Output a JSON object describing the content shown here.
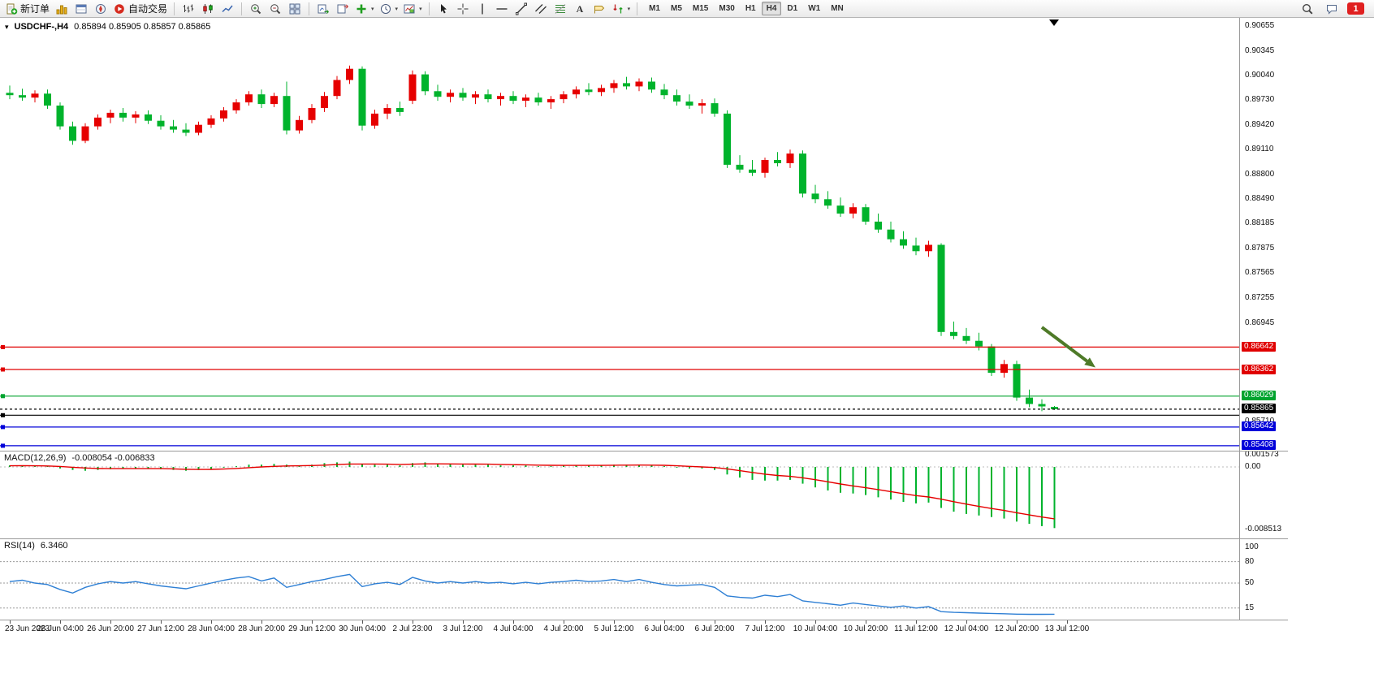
{
  "toolbar": {
    "new_order_label": "新订单",
    "auto_trading_label": "自动交易",
    "timeframes": [
      "M1",
      "M5",
      "M15",
      "M30",
      "H1",
      "H4",
      "D1",
      "W1",
      "MN"
    ],
    "active_timeframe": "H4",
    "notification_badge": "1"
  },
  "chart": {
    "title_symbol": "USDCHF-,H4",
    "title_ohlc": "0.85894 0.85905 0.85857 0.85865"
  },
  "macd_panel": {
    "label": "MACD(12,26,9)",
    "values": "-0.008054 -0.006833",
    "axis_labels": [
      "0.001573",
      "0.00",
      "-0.008513"
    ],
    "axis_values": [
      0.001573,
      0,
      -0.008513
    ]
  },
  "rsi_panel": {
    "label": "RSI(14)",
    "value": "6.3460",
    "axis_labels": [
      "100",
      "80",
      "50",
      "15"
    ],
    "axis_values": [
      100,
      80,
      50,
      15
    ],
    "level_lines": [
      80,
      50,
      15
    ]
  },
  "colors": {
    "up_color": "#E60000",
    "down_color": "#00B32C",
    "macd_color": "#00B32C",
    "signal_color": "#E60000",
    "rsi_color": "#2E7FD4",
    "arrow_color": "#4E7A28",
    "line_red": "#E00000",
    "line_green": "#00A32E",
    "line_blue": "#0000D9"
  },
  "chart_data": {
    "type": "candlestick",
    "symbol": "USDCHF",
    "timeframe": "H4",
    "ohlc_current": {
      "open": 0.85894,
      "high": 0.85905,
      "low": 0.85857,
      "close": 0.85865
    },
    "price_ticks": [
      "0.90655",
      "0.90345",
      "0.90040",
      "0.89730",
      "0.89420",
      "0.89110",
      "0.88800",
      "0.88490",
      "0.88185",
      "0.87875",
      "0.87565",
      "0.87255",
      "0.86945",
      "0.85710"
    ],
    "time_labels": [
      "23 Jun 2023",
      "26 Jun 04:00",
      "26 Jun 20:00",
      "27 Jun 12:00",
      "28 Jun 04:00",
      "28 Jun 20:00",
      "29 Jun 12:00",
      "30 Jun 04:00",
      "2 Jul 23:00",
      "3 Jul 12:00",
      "4 Jul 04:00",
      "4 Jul 20:00",
      "5 Jul 12:00",
      "6 Jul 04:00",
      "6 Jul 20:00",
      "7 Jul 12:00",
      "10 Jul 04:00",
      "10 Jul 20:00",
      "11 Jul 12:00",
      "12 Jul 04:00",
      "12 Jul 20:00",
      "13 Jul 12:00"
    ],
    "levels": [
      {
        "name": "resistance-line-red-1",
        "price": 0.86642,
        "label": "0.86642",
        "color": "#E00000",
        "style": "solid",
        "box": true,
        "handle": true
      },
      {
        "name": "resistance-line-red-2",
        "price": 0.86362,
        "label": "0.86362",
        "color": "#E00000",
        "style": "solid",
        "box": true,
        "handle": true
      },
      {
        "name": "support-line-green",
        "price": 0.86029,
        "label": "0.86029",
        "color": "#00A32E",
        "style": "solid",
        "box": true,
        "handle": true
      },
      {
        "name": "bid-price-line",
        "price": 0.85865,
        "label": "0.85865",
        "color": "#000000",
        "style": "dashed",
        "box": true,
        "handle": false
      },
      {
        "name": "horizontal-line-black",
        "price": 0.8579,
        "label": "0.85790",
        "color": "#000000",
        "style": "solid",
        "box": false,
        "handle": true
      },
      {
        "name": "support-line-blue-1",
        "price": 0.85642,
        "label": "0.85642",
        "color": "#0000D9",
        "style": "solid",
        "box": true,
        "handle": true
      },
      {
        "name": "support-line-blue-2",
        "price": 0.85408,
        "label": "0.85408",
        "color": "#0000D9",
        "style": "solid",
        "box": true,
        "handle": true
      }
    ],
    "candles": [
      [
        0.8982,
        0.8991,
        0.8974,
        0.8979
      ],
      [
        0.8979,
        0.8987,
        0.8972,
        0.8976
      ],
      [
        0.8976,
        0.8985,
        0.897,
        0.8981
      ],
      [
        0.8981,
        0.8986,
        0.8962,
        0.8966
      ],
      [
        0.8966,
        0.897,
        0.8936,
        0.894
      ],
      [
        0.894,
        0.8946,
        0.8917,
        0.8922
      ],
      [
        0.8922,
        0.8944,
        0.8919,
        0.894
      ],
      [
        0.894,
        0.8955,
        0.8936,
        0.8951
      ],
      [
        0.8951,
        0.8961,
        0.8944,
        0.8957
      ],
      [
        0.8957,
        0.8963,
        0.8946,
        0.8951
      ],
      [
        0.8951,
        0.8959,
        0.8944,
        0.8955
      ],
      [
        0.8955,
        0.896,
        0.8943,
        0.8947
      ],
      [
        0.8947,
        0.8954,
        0.8936,
        0.894
      ],
      [
        0.894,
        0.8948,
        0.8932,
        0.8936
      ],
      [
        0.8936,
        0.8944,
        0.8928,
        0.8932
      ],
      [
        0.8932,
        0.8946,
        0.8929,
        0.8942
      ],
      [
        0.8942,
        0.8954,
        0.8938,
        0.895
      ],
      [
        0.895,
        0.8964,
        0.8946,
        0.896
      ],
      [
        0.896,
        0.8974,
        0.8956,
        0.897
      ],
      [
        0.897,
        0.8984,
        0.8966,
        0.898
      ],
      [
        0.898,
        0.8986,
        0.8963,
        0.8968
      ],
      [
        0.8968,
        0.8982,
        0.8964,
        0.8978
      ],
      [
        0.8978,
        0.8996,
        0.893,
        0.8935
      ],
      [
        0.8935,
        0.8953,
        0.8931,
        0.8948
      ],
      [
        0.8948,
        0.8968,
        0.8944,
        0.8963
      ],
      [
        0.8963,
        0.8983,
        0.8958,
        0.8978
      ],
      [
        0.8978,
        0.9003,
        0.8974,
        0.8998
      ],
      [
        0.8998,
        0.9016,
        0.8993,
        0.9012
      ],
      [
        0.9012,
        0.9015,
        0.8935,
        0.8941
      ],
      [
        0.8941,
        0.8961,
        0.8937,
        0.8956
      ],
      [
        0.8956,
        0.8968,
        0.8949,
        0.8963
      ],
      [
        0.8963,
        0.8971,
        0.8953,
        0.8958
      ],
      [
        0.8972,
        0.901,
        0.8968,
        0.9005
      ],
      [
        0.9005,
        0.9009,
        0.8979,
        0.8984
      ],
      [
        0.8984,
        0.8992,
        0.8972,
        0.8977
      ],
      [
        0.8977,
        0.8986,
        0.897,
        0.8982
      ],
      [
        0.8982,
        0.8988,
        0.8972,
        0.8976
      ],
      [
        0.8976,
        0.8984,
        0.8968,
        0.898
      ],
      [
        0.898,
        0.8986,
        0.897,
        0.8974
      ],
      [
        0.8974,
        0.8982,
        0.8966,
        0.8978
      ],
      [
        0.8978,
        0.8984,
        0.8968,
        0.8972
      ],
      [
        0.8972,
        0.898,
        0.8964,
        0.8976
      ],
      [
        0.8976,
        0.8982,
        0.8966,
        0.897
      ],
      [
        0.897,
        0.8978,
        0.8962,
        0.8974
      ],
      [
        0.8974,
        0.8984,
        0.8969,
        0.898
      ],
      [
        0.898,
        0.899,
        0.8975,
        0.8986
      ],
      [
        0.8986,
        0.8994,
        0.8979,
        0.8983
      ],
      [
        0.8983,
        0.8992,
        0.8978,
        0.8988
      ],
      [
        0.8988,
        0.8998,
        0.8982,
        0.8994
      ],
      [
        0.8994,
        0.9002,
        0.8986,
        0.899
      ],
      [
        0.899,
        0.9,
        0.8984,
        0.8996
      ],
      [
        0.8996,
        0.9001,
        0.8982,
        0.8986
      ],
      [
        0.8986,
        0.8993,
        0.8974,
        0.8979
      ],
      [
        0.8979,
        0.8986,
        0.8966,
        0.8971
      ],
      [
        0.8971,
        0.898,
        0.8962,
        0.8966
      ],
      [
        0.8966,
        0.8974,
        0.8956,
        0.8969
      ],
      [
        0.8969,
        0.8975,
        0.8952,
        0.8956
      ],
      [
        0.8956,
        0.896,
        0.8888,
        0.8892
      ],
      [
        0.8892,
        0.8904,
        0.8882,
        0.8886
      ],
      [
        0.8886,
        0.8898,
        0.8878,
        0.8882
      ],
      [
        0.8882,
        0.8901,
        0.8876,
        0.8898
      ],
      [
        0.8898,
        0.8908,
        0.889,
        0.8894
      ],
      [
        0.8894,
        0.8911,
        0.8888,
        0.8906
      ],
      [
        0.8906,
        0.891,
        0.8851,
        0.8856
      ],
      [
        0.8856,
        0.8867,
        0.8844,
        0.8849
      ],
      [
        0.8849,
        0.8859,
        0.8837,
        0.8841
      ],
      [
        0.8841,
        0.8851,
        0.8827,
        0.8831
      ],
      [
        0.8831,
        0.8844,
        0.8825,
        0.8839
      ],
      [
        0.8839,
        0.8843,
        0.8817,
        0.8821
      ],
      [
        0.8821,
        0.8831,
        0.8807,
        0.8811
      ],
      [
        0.8811,
        0.8821,
        0.8795,
        0.8799
      ],
      [
        0.8799,
        0.8809,
        0.8787,
        0.8791
      ],
      [
        0.8791,
        0.8801,
        0.8779,
        0.8784
      ],
      [
        0.8784,
        0.8797,
        0.8777,
        0.8792
      ],
      [
        0.8792,
        0.8794,
        0.8678,
        0.8683
      ],
      [
        0.8683,
        0.8696,
        0.8674,
        0.8678
      ],
      [
        0.8678,
        0.8688,
        0.8668,
        0.8672
      ],
      [
        0.8672,
        0.8682,
        0.866,
        0.8665
      ],
      [
        0.8665,
        0.8668,
        0.8628,
        0.8632
      ],
      [
        0.8632,
        0.8648,
        0.8626,
        0.8643
      ],
      [
        0.8643,
        0.8647,
        0.8597,
        0.8601
      ],
      [
        0.8601,
        0.8611,
        0.8589,
        0.8593
      ],
      [
        0.8593,
        0.8599,
        0.8584,
        0.859
      ],
      [
        0.85894,
        0.85905,
        0.85857,
        0.85865
      ]
    ],
    "macd": {
      "hist": [
        0.0002,
        0.0002,
        0.0001,
        0.0001,
        -0.0002,
        -0.0004,
        -0.0005,
        -0.0004,
        -0.0003,
        -0.0002,
        -0.0002,
        -0.0002,
        -0.0003,
        -0.0004,
        -0.0005,
        -0.0004,
        -0.0003,
        -0.0001,
        0.0001,
        0.0003,
        0.0003,
        0.0004,
        0.0003,
        0.0002,
        0.0003,
        0.0005,
        0.0006,
        0.0007,
        0.0004,
        0.0003,
        0.0003,
        0.0002,
        0.0005,
        0.0006,
        0.0004,
        0.0004,
        0.0003,
        0.0003,
        0.0003,
        0.0002,
        0.0002,
        0.0002,
        0.0001,
        0.0001,
        0.0002,
        0.0002,
        0.0002,
        0.0002,
        0.0003,
        0.0003,
        0.0003,
        0.0002,
        0.0001,
        -0.0001,
        -0.0002,
        -0.0002,
        -0.0004,
        -0.001,
        -0.0014,
        -0.0017,
        -0.0018,
        -0.0018,
        -0.0017,
        -0.0022,
        -0.0027,
        -0.0031,
        -0.0034,
        -0.0035,
        -0.0037,
        -0.004,
        -0.0043,
        -0.0046,
        -0.0048,
        -0.0047,
        -0.0054,
        -0.0059,
        -0.0062,
        -0.0064,
        -0.0066,
        -0.0068,
        -0.0072,
        -0.0075,
        -0.0078,
        -0.008054
      ],
      "signal": [
        0.00015,
        0.00016,
        0.00015,
        0.00013,
        6e-05,
        -4e-05,
        -0.00014,
        -0.0002,
        -0.00023,
        -0.00023,
        -0.00022,
        -0.00022,
        -0.00023,
        -0.00026,
        -0.00031,
        -0.00033,
        -0.00032,
        -0.00028,
        -0.0002,
        -0.0001,
        0.0,
        8e-05,
        0.00013,
        0.00015,
        0.00018,
        0.00024,
        0.00031,
        0.00039,
        0.00039,
        0.00038,
        0.00036,
        0.00033,
        0.00036,
        0.00041,
        0.00041,
        0.0004,
        0.00038,
        0.00037,
        0.00036,
        0.00033,
        0.0003,
        0.00028,
        0.00024,
        0.00021,
        0.0002,
        0.0002,
        0.0002,
        0.0002,
        0.00022,
        0.00024,
        0.00025,
        0.00024,
        0.00021,
        0.00015,
        8e-05,
        0.0,
        -8e-05,
        -0.00026,
        -0.00049,
        -0.00073,
        -0.00095,
        -0.00112,
        -0.00124,
        -0.00143,
        -0.00168,
        -0.00196,
        -0.00225,
        -0.0025,
        -0.00274,
        -0.00299,
        -0.00325,
        -0.00352,
        -0.00378,
        -0.00396,
        -0.00425,
        -0.00458,
        -0.0049,
        -0.0052,
        -0.00548,
        -0.00574,
        -0.00603,
        -0.00632,
        -0.0066,
        -0.006833
      ]
    },
    "rsi": [
      52,
      54,
      50,
      48,
      41,
      36,
      44,
      49,
      52,
      50,
      52,
      49,
      46,
      44,
      42,
      46,
      50,
      54,
      57,
      59,
      53,
      57,
      44,
      48,
      52,
      55,
      59,
      62,
      45,
      49,
      51,
      48,
      58,
      53,
      50,
      52,
      50,
      52,
      50,
      51,
      49,
      51,
      49,
      51,
      52,
      54,
      52,
      53,
      55,
      52,
      55,
      51,
      48,
      46,
      47,
      48,
      44,
      32,
      30,
      29,
      33,
      31,
      34,
      25,
      23,
      21,
      19,
      22,
      20,
      18,
      16,
      18,
      15,
      17,
      10,
      9,
      8.5,
      8,
      7.5,
      7,
      6.5,
      6.2,
      6.3,
      6.346
    ]
  }
}
